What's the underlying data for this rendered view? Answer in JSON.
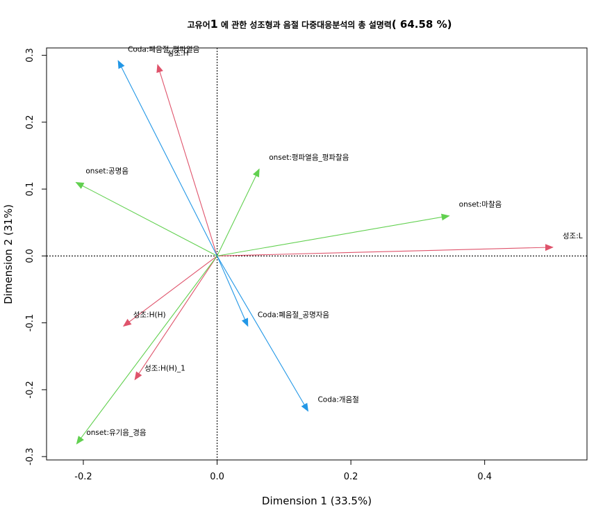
{
  "chart_data": {
    "type": "scatter",
    "title_prefix": "고유어",
    "title_num": "1",
    "title_mid": " 에 관한 성조형과 음절 다중대응분석의 총 설명력",
    "title_pct": "( 64.58 %)",
    "xlabel": "Dimension 1 (33.5%)",
    "ylabel": "Dimension 2 (31%)",
    "xlim": [
      -0.255,
      0.553
    ],
    "ylim": [
      -0.305,
      0.311
    ],
    "x_ticks": [
      -0.2,
      0.0,
      0.2,
      0.4
    ],
    "x_tick_labels": [
      "-0.2",
      "0.0",
      "0.2",
      "0.4"
    ],
    "y_ticks": [
      -0.3,
      -0.2,
      -0.1,
      0.0,
      0.1,
      0.2,
      0.3
    ],
    "y_tick_labels": [
      "-0.3",
      "-0.2",
      "-0.1",
      "0.0",
      "0.1",
      "0.2",
      "0.3"
    ],
    "reference_lines": {
      "x": 0,
      "y": 0,
      "style": "dotted"
    },
    "colors": {
      "성조": "#DF536B",
      "onset": "#61D04F",
      "Coda": "#2297E6"
    },
    "points": [
      {
        "label": "성조:L",
        "group": "성조",
        "x": 0.502,
        "y": 0.013
      },
      {
        "label": "성조:H",
        "group": "성조",
        "x": -0.089,
        "y": 0.286
      },
      {
        "label": "성조:H(H)",
        "group": "성조",
        "x": -0.14,
        "y": -0.105
      },
      {
        "label": "성조:H(H)_1",
        "group": "성조",
        "x": -0.123,
        "y": -0.185
      },
      {
        "label": "onset:공명음",
        "group": "onset",
        "x": -0.211,
        "y": 0.11
      },
      {
        "label": "onset:평파열음_평파찰음",
        "group": "onset",
        "x": 0.063,
        "y": 0.13
      },
      {
        "label": "onset:마찰음",
        "group": "onset",
        "x": 0.347,
        "y": 0.06
      },
      {
        "label": "onset:유기음_경음",
        "group": "onset",
        "x": -0.21,
        "y": -0.281
      },
      {
        "label": "Coda:폐음절_평파열음",
        "group": "Coda",
        "x": -0.148,
        "y": 0.292
      },
      {
        "label": "Coda:폐음절_공명자음",
        "group": "Coda",
        "x": 0.046,
        "y": -0.105
      },
      {
        "label": "Coda:개음절",
        "group": "Coda",
        "x": 0.136,
        "y": -0.232
      }
    ]
  }
}
